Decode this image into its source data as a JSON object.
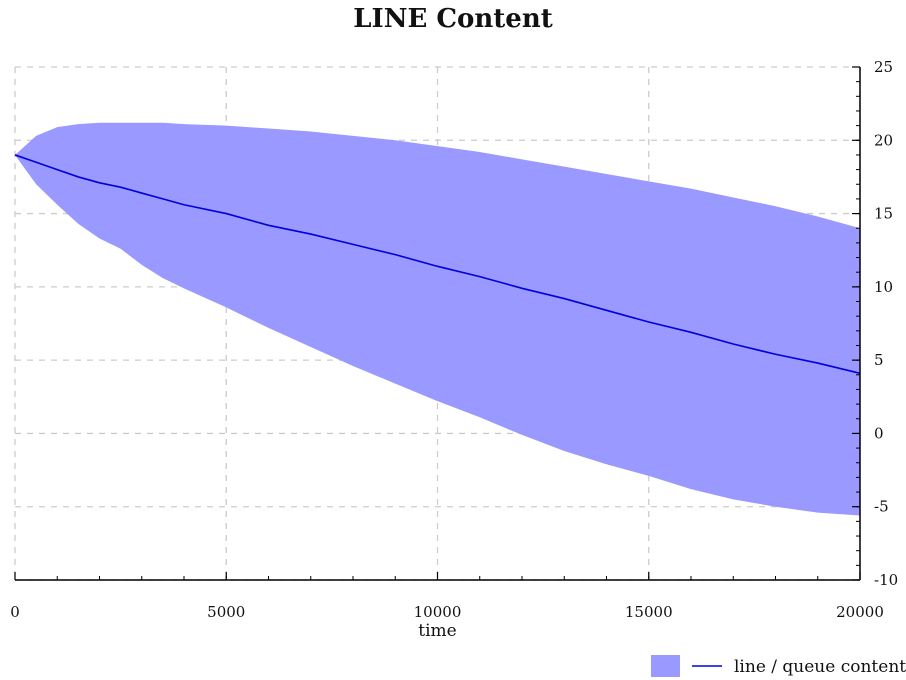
{
  "title": "LINE Content",
  "chart_data": {
    "type": "line",
    "title": "LINE Content",
    "xlabel": "time",
    "ylabel": "",
    "xlim": [
      0,
      20000
    ],
    "ylim": [
      -10,
      25
    ],
    "x_ticks": [
      0,
      5000,
      10000,
      15000,
      20000
    ],
    "y_ticks": [
      -10,
      -5,
      0,
      5,
      10,
      15,
      20,
      25
    ],
    "grid": true,
    "y_axis_side": "right",
    "legend_position": "bottom-right",
    "colors": {
      "band": "#9999ff",
      "line": "#0000dd",
      "grid": "#cccccc"
    },
    "series": [
      {
        "name": "line / queue content",
        "x": [
          0,
          500,
          1000,
          1500,
          2000,
          2500,
          3000,
          3500,
          4000,
          5000,
          6000,
          7000,
          8000,
          9000,
          10000,
          11000,
          12000,
          13000,
          14000,
          15000,
          16000,
          17000,
          18000,
          19000,
          20000
        ],
        "y": [
          19.0,
          18.5,
          18.0,
          17.5,
          17.1,
          16.8,
          16.4,
          16.0,
          15.6,
          15.0,
          14.2,
          13.6,
          12.9,
          12.2,
          11.4,
          10.7,
          9.9,
          9.2,
          8.4,
          7.6,
          6.9,
          6.1,
          5.4,
          4.8,
          4.1
        ],
        "band_upper": [
          19.0,
          20.3,
          20.9,
          21.1,
          21.2,
          21.2,
          21.2,
          21.2,
          21.1,
          21.0,
          20.8,
          20.6,
          20.3,
          20.0,
          19.6,
          19.2,
          18.7,
          18.2,
          17.7,
          17.2,
          16.7,
          16.1,
          15.5,
          14.8,
          14.0
        ],
        "band_lower": [
          19.0,
          17.0,
          15.6,
          14.3,
          13.3,
          12.6,
          11.5,
          10.6,
          9.9,
          8.6,
          7.2,
          5.9,
          4.6,
          3.4,
          2.2,
          1.1,
          -0.1,
          -1.2,
          -2.1,
          -2.9,
          -3.8,
          -4.5,
          -5.0,
          -5.4,
          -5.6
        ]
      }
    ]
  }
}
